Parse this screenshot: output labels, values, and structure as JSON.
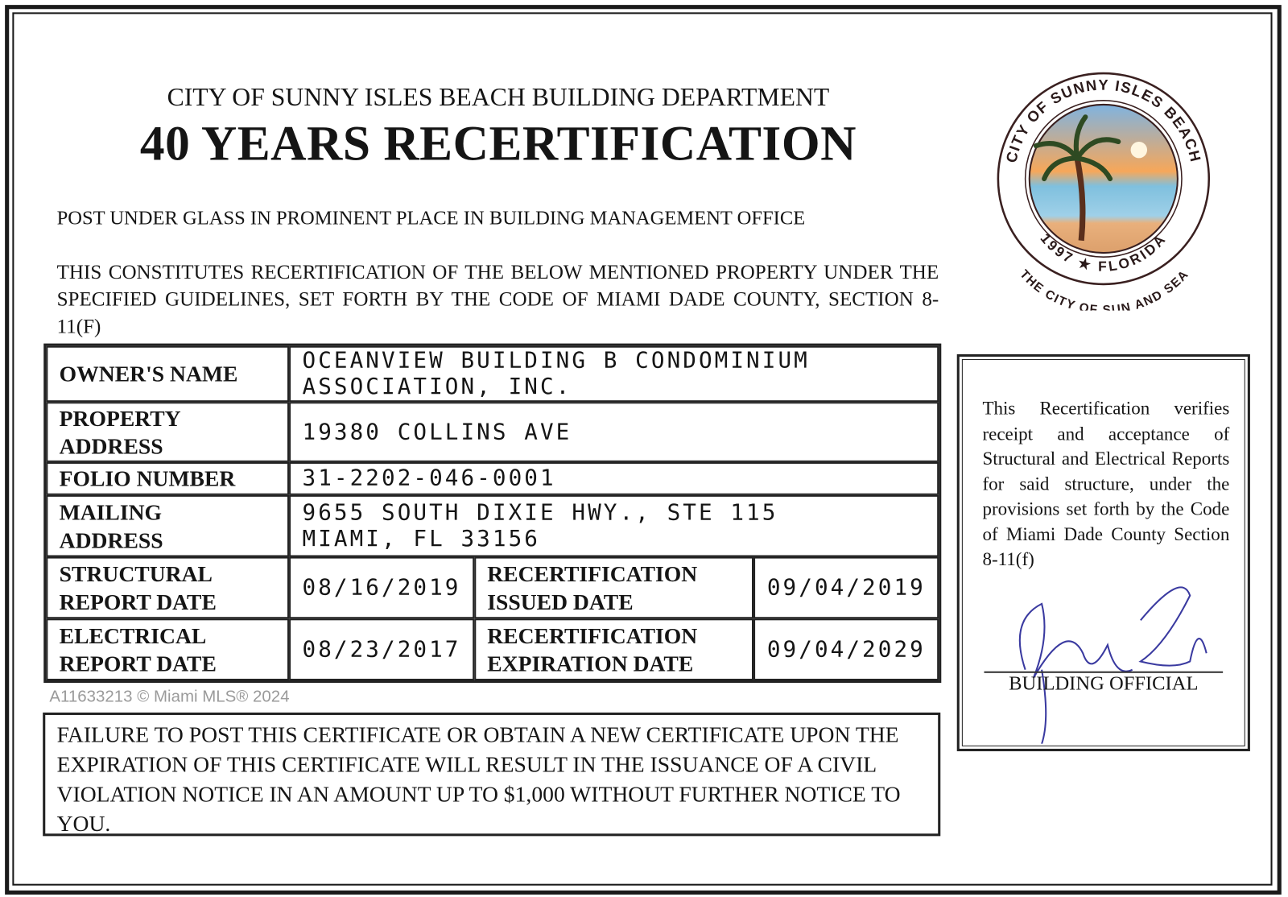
{
  "header": {
    "department": "CITY OF SUNNY ISLES BEACH BUILDING DEPARTMENT",
    "title": "40 YEARS RECERTIFICATION",
    "post_notice": "POST UNDER GLASS IN PROMINENT PLACE IN BUILDING MANAGEMENT OFFICE",
    "paragraph": "THIS CONSTITUTES RECERTIFICATION OF THE BELOW MENTIONED PROPERTY UNDER THE SPECIFIED GUIDELINES, SET FORTH BY THE CODE OF MIAMI DADE COUNTY, SECTION 8-11(F)"
  },
  "seal": {
    "top_text": "CITY OF SUNNY ISLES BEACH",
    "bottom_text": "1997 ★ FLORIDA",
    "motto": "THE CITY OF SUN AND SEA"
  },
  "table": {
    "owner_label": "OWNER'S NAME",
    "owner_line1": "OCEANVIEW BUILDING B CONDOMINIUM",
    "owner_line2": "ASSOCIATION, INC.",
    "property_label_1": "PROPERTY",
    "property_label_2": "ADDRESS",
    "property_value": "19380 COLLINS AVE",
    "folio_label": "FOLIO NUMBER",
    "folio_value": "31-2202-046-0001",
    "mailing_label_1": "MAILING",
    "mailing_label_2": "ADDRESS",
    "mailing_line1": "9655 SOUTH DIXIE HWY., STE 115",
    "mailing_line2": "MIAMI, FL 33156",
    "structural_label_1": "STRUCTURAL",
    "structural_label_2": "REPORT DATE",
    "structural_value": "08/16/2019",
    "issued_label_1": "RECERTIFICATION",
    "issued_label_2": "ISSUED DATE",
    "issued_value": "09/04/2019",
    "electrical_label_1": "ELECTRICAL",
    "electrical_label_2": "REPORT DATE",
    "electrical_value": "08/23/2017",
    "expiration_label_1": "RECERTIFICATION",
    "expiration_label_2": "EXPIRATION DATE",
    "expiration_value": "09/04/2029"
  },
  "footer_notice": "FAILURE TO POST THIS CERTIFICATE OR OBTAIN A NEW CERTIFICATE UPON THE EXPIRATION OF THIS CERTIFICATE WILL RESULT IN THE ISSUANCE OF A CIVIL VIOLATION NOTICE IN AN AMOUNT UP TO $1,000 WITHOUT FURTHER NOTICE TO YOU.",
  "side_box": {
    "text": "This Recertification verifies receipt and acceptance of Structural and Electrical Reports for said structure, under the provisions set forth by the Code of Miami Dade County Section 8-11(f)",
    "signature_title": "BUILDING OFFICIAL"
  },
  "watermark": "A11633213 © Miami MLS® 2024"
}
